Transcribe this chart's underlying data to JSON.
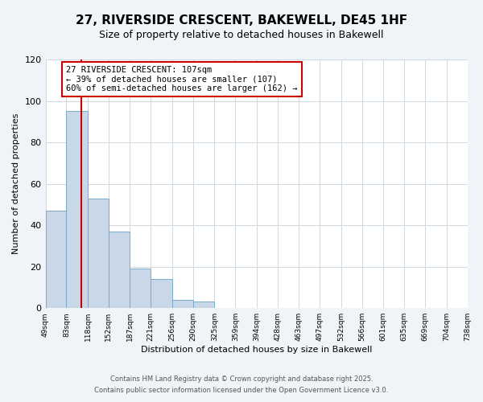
{
  "title1": "27, RIVERSIDE CRESCENT, BAKEWELL, DE45 1HF",
  "title2": "Size of property relative to detached houses in Bakewell",
  "xlabel": "Distribution of detached houses by size in Bakewell",
  "ylabel": "Number of detached properties",
  "bin_edges": [
    49,
    83,
    118,
    152,
    187,
    221,
    256,
    290,
    325,
    359,
    394,
    428,
    463,
    497,
    532,
    566,
    601,
    635,
    669,
    704,
    738
  ],
  "bar_heights": [
    47,
    95,
    53,
    37,
    19,
    14,
    4,
    3,
    0,
    0,
    0,
    0,
    0,
    0,
    0,
    0,
    0,
    0,
    0,
    0
  ],
  "bar_color": "#c8d8e8",
  "bar_edgecolor": "#7aaac8",
  "vline_x": 107,
  "vline_color": "#cc0000",
  "ylim": [
    0,
    120
  ],
  "yticks": [
    0,
    20,
    40,
    60,
    80,
    100,
    120
  ],
  "tick_labels": [
    "49sqm",
    "83sqm",
    "118sqm",
    "152sqm",
    "187sqm",
    "221sqm",
    "256sqm",
    "290sqm",
    "325sqm",
    "359sqm",
    "394sqm",
    "428sqm",
    "463sqm",
    "497sqm",
    "532sqm",
    "566sqm",
    "601sqm",
    "635sqm",
    "669sqm",
    "704sqm",
    "738sqm"
  ],
  "annotation_text": "27 RIVERSIDE CRESCENT: 107sqm\n← 39% of detached houses are smaller (107)\n60% of semi-detached houses are larger (162) →",
  "annotation_box_edgecolor": "#cc0000",
  "footnote1": "Contains HM Land Registry data © Crown copyright and database right 2025.",
  "footnote2": "Contains public sector information licensed under the Open Government Licence v3.0.",
  "bg_color": "#f0f4f8",
  "plot_bg_color": "#ffffff",
  "grid_color": "#d0d8e0",
  "title1_fontsize": 11,
  "title2_fontsize": 9,
  "xlabel_fontsize": 8,
  "ylabel_fontsize": 8,
  "tick_fontsize": 6.5,
  "ytick_fontsize": 8,
  "annot_fontsize": 7.5,
  "footnote_fontsize": 6
}
